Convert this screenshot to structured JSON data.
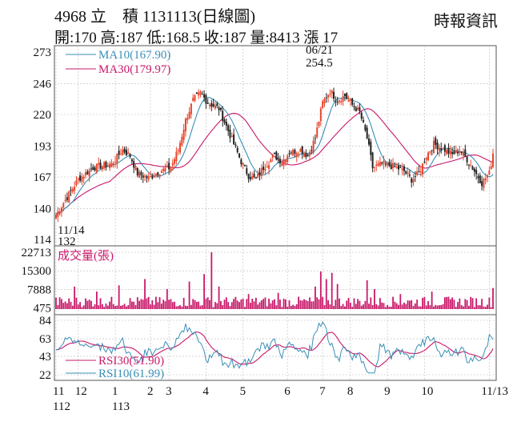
{
  "header": {
    "title": "4968 立　積 1131113(日線圖)",
    "quote": "開:170 高:187 低:168.5 收:187 量:8413 漲 17",
    "source": "時報資訊"
  },
  "colors": {
    "up": "#e8452c",
    "down": "#222222",
    "ma10": "#3a8fb7",
    "ma30": "#c8196a",
    "volume": "#c8196a",
    "rsi10": "#3a8fb7",
    "rsi30": "#c8196a",
    "grid": "#bbbbbb",
    "frame": "#555555"
  },
  "chart_data": [
    {
      "type": "candlestick",
      "ylim": [
        114,
        273
      ],
      "yticks": [
        273,
        246,
        220,
        193,
        167,
        140,
        114
      ],
      "legend": [
        {
          "label": "MA10(167.90)",
          "color": "#3a8fb7"
        },
        {
          "label": "MA30(179.97)",
          "color": "#c8196a"
        }
      ],
      "annotations": [
        {
          "date": "11/14",
          "value": "132",
          "x_index": 1,
          "y": 132
        },
        {
          "date": "06/21",
          "value": "254.5",
          "x_index": 148,
          "y": 254.5
        }
      ],
      "close_anchors": [
        {
          "i": 0,
          "v": 135
        },
        {
          "i": 6,
          "v": 150
        },
        {
          "i": 12,
          "v": 165
        },
        {
          "i": 20,
          "v": 175
        },
        {
          "i": 30,
          "v": 178
        },
        {
          "i": 36,
          "v": 190
        },
        {
          "i": 40,
          "v": 185
        },
        {
          "i": 44,
          "v": 170
        },
        {
          "i": 50,
          "v": 166
        },
        {
          "i": 56,
          "v": 172
        },
        {
          "i": 62,
          "v": 175
        },
        {
          "i": 66,
          "v": 190
        },
        {
          "i": 70,
          "v": 215
        },
        {
          "i": 74,
          "v": 232
        },
        {
          "i": 78,
          "v": 238
        },
        {
          "i": 82,
          "v": 230
        },
        {
          "i": 88,
          "v": 225
        },
        {
          "i": 92,
          "v": 210
        },
        {
          "i": 96,
          "v": 195
        },
        {
          "i": 100,
          "v": 180
        },
        {
          "i": 104,
          "v": 168
        },
        {
          "i": 108,
          "v": 165
        },
        {
          "i": 112,
          "v": 175
        },
        {
          "i": 118,
          "v": 185
        },
        {
          "i": 122,
          "v": 180
        },
        {
          "i": 126,
          "v": 188
        },
        {
          "i": 132,
          "v": 190
        },
        {
          "i": 136,
          "v": 185
        },
        {
          "i": 140,
          "v": 200
        },
        {
          "i": 144,
          "v": 230
        },
        {
          "i": 148,
          "v": 240
        },
        {
          "i": 152,
          "v": 232
        },
        {
          "i": 156,
          "v": 236
        },
        {
          "i": 160,
          "v": 228
        },
        {
          "i": 164,
          "v": 222
        },
        {
          "i": 168,
          "v": 200
        },
        {
          "i": 171,
          "v": 175
        },
        {
          "i": 176,
          "v": 178
        },
        {
          "i": 182,
          "v": 176
        },
        {
          "i": 188,
          "v": 172
        },
        {
          "i": 192,
          "v": 165
        },
        {
          "i": 196,
          "v": 170
        },
        {
          "i": 200,
          "v": 185
        },
        {
          "i": 204,
          "v": 195
        },
        {
          "i": 210,
          "v": 190
        },
        {
          "i": 214,
          "v": 186
        },
        {
          "i": 218,
          "v": 190
        },
        {
          "i": 222,
          "v": 182
        },
        {
          "i": 226,
          "v": 172
        },
        {
          "i": 230,
          "v": 162
        },
        {
          "i": 234,
          "v": 170
        },
        {
          "i": 236,
          "v": 187
        }
      ],
      "candle_count": 237
    },
    {
      "type": "bar",
      "title": "成交量(張)",
      "ylim": [
        0,
        22713
      ],
      "yticks": [
        22713,
        15300,
        7888,
        475
      ],
      "last_value": 8413,
      "spikes": [
        {
          "i": 10,
          "v": 9000
        },
        {
          "i": 22,
          "v": 7000
        },
        {
          "i": 34,
          "v": 9500
        },
        {
          "i": 48,
          "v": 12000
        },
        {
          "i": 60,
          "v": 8000
        },
        {
          "i": 72,
          "v": 11000
        },
        {
          "i": 80,
          "v": 14000
        },
        {
          "i": 84,
          "v": 22713
        },
        {
          "i": 88,
          "v": 9000
        },
        {
          "i": 104,
          "v": 6000
        },
        {
          "i": 120,
          "v": 6500
        },
        {
          "i": 140,
          "v": 9000
        },
        {
          "i": 143,
          "v": 15000
        },
        {
          "i": 146,
          "v": 12000
        },
        {
          "i": 149,
          "v": 14500
        },
        {
          "i": 152,
          "v": 10000
        },
        {
          "i": 168,
          "v": 11500
        },
        {
          "i": 172,
          "v": 8000
        },
        {
          "i": 186,
          "v": 6000
        },
        {
          "i": 203,
          "v": 7000
        },
        {
          "i": 236,
          "v": 8413
        }
      ]
    },
    {
      "type": "line",
      "ylim": [
        22,
        84
      ],
      "yticks": [
        84,
        63,
        43,
        22
      ],
      "series": [
        {
          "name": "RSI30(51.90)",
          "color": "#c8196a"
        },
        {
          "name": "RSI10(61.99)",
          "color": "#3a8fb7"
        }
      ]
    },
    {
      "type": "axis",
      "month_labels": [
        {
          "label": "11",
          "i": 0
        },
        {
          "label": "12",
          "i": 12
        },
        {
          "label": "1",
          "i": 32
        },
        {
          "label": "2",
          "i": 51
        },
        {
          "label": "3",
          "i": 61
        },
        {
          "label": "4",
          "i": 81
        },
        {
          "label": "5",
          "i": 101
        },
        {
          "label": "6",
          "i": 125
        },
        {
          "label": "7",
          "i": 144
        },
        {
          "label": "8",
          "i": 159
        },
        {
          "label": "9",
          "i": 179
        },
        {
          "label": "10",
          "i": 199
        },
        {
          "label": "11/13",
          "i": 234
        }
      ],
      "year_labels": [
        {
          "label": "112",
          "i": 0
        },
        {
          "label": "113",
          "i": 32
        }
      ]
    }
  ]
}
